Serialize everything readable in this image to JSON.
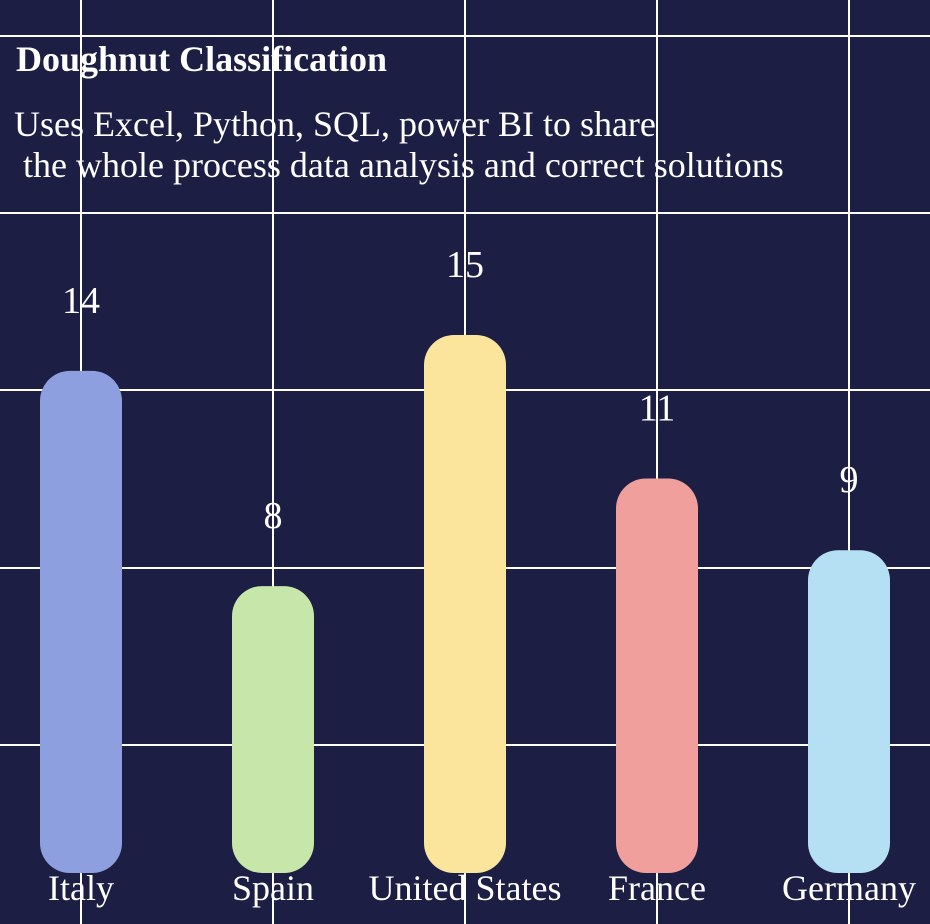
{
  "chart_data": {
    "type": "bar",
    "title": "Doughnut Classification",
    "subtitle_lines": [
      "Uses Excel, Python, SQL, power BI to share",
      " the whole process data analysis and correct solutions"
    ],
    "categories": [
      "Italy",
      "Spain",
      "United States",
      "France",
      "Germany"
    ],
    "values": [
      14,
      8,
      15,
      11,
      9
    ],
    "colors": [
      "#8e9fdf",
      "#c7e6a9",
      "#fbe49b",
      "#f09f9c",
      "#b5e0f4"
    ],
    "background_color": "#1c1e43",
    "grid_color": "#ffffff",
    "text_color": "#ffffff",
    "grid": true,
    "legend": "none",
    "xlabel": "",
    "ylabel": "",
    "ylim": [
      0,
      15
    ]
  }
}
